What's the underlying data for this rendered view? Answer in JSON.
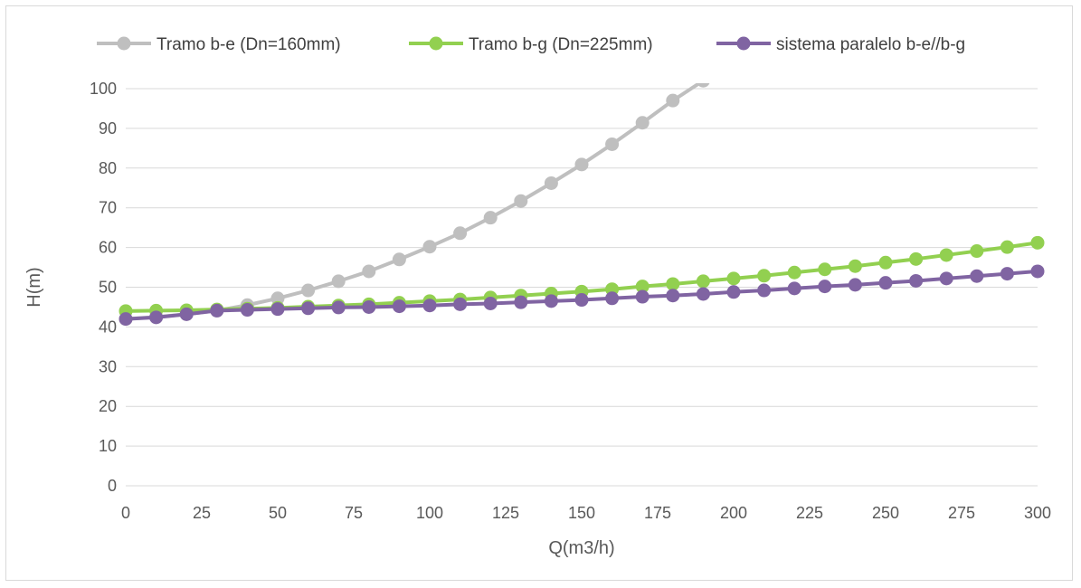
{
  "chart_data": {
    "type": "line",
    "title": "",
    "xlabel": "Q(m3/h)",
    "ylabel": "H(m)",
    "xlim": [
      0,
      300
    ],
    "ylim": [
      0,
      100
    ],
    "xticks": [
      0,
      25,
      50,
      75,
      100,
      125,
      150,
      175,
      200,
      225,
      250,
      275,
      300
    ],
    "yticks": [
      0,
      10,
      20,
      30,
      40,
      50,
      60,
      70,
      80,
      90,
      100
    ],
    "grid": "horizontal",
    "legend_position": "top",
    "series": [
      {
        "name": "Tramo b-e (Dn=160mm)",
        "color": "#bfbfbf",
        "x": [
          0,
          10,
          20,
          30,
          40,
          50,
          60,
          70,
          80,
          90,
          100,
          110,
          120,
          130,
          140,
          150,
          160,
          170,
          180,
          190
        ],
        "y": [
          42.0,
          42.5,
          43.2,
          44.1,
          45.5,
          47.2,
          49.2,
          51.5,
          54.0,
          57.0,
          60.2,
          63.6,
          67.5,
          71.7,
          76.2,
          80.9,
          86.0,
          91.4,
          97.0,
          102.0
        ]
      },
      {
        "name": "Tramo b-g (Dn=225mm)",
        "color": "#92d050",
        "x": [
          0,
          10,
          20,
          30,
          40,
          50,
          60,
          70,
          80,
          90,
          100,
          110,
          120,
          130,
          140,
          150,
          160,
          170,
          180,
          190,
          200,
          210,
          220,
          230,
          240,
          250,
          260,
          270,
          280,
          290,
          300
        ],
        "y": [
          44.0,
          44.1,
          44.2,
          44.4,
          44.6,
          44.8,
          45.1,
          45.4,
          45.7,
          46.1,
          46.5,
          46.9,
          47.4,
          47.9,
          48.4,
          48.9,
          49.5,
          50.2,
          50.8,
          51.5,
          52.2,
          52.9,
          53.7,
          54.5,
          55.3,
          56.2,
          57.1,
          58.1,
          59.1,
          60.1,
          61.2
        ]
      },
      {
        "name": "sistema paralelo b-e//b-g",
        "color": "#8064a2",
        "x": [
          0,
          10,
          20,
          30,
          40,
          50,
          60,
          70,
          80,
          90,
          100,
          110,
          120,
          130,
          140,
          150,
          160,
          170,
          180,
          190,
          200,
          210,
          220,
          230,
          240,
          250,
          260,
          270,
          280,
          290,
          300
        ],
        "y": [
          42.0,
          42.4,
          43.2,
          44.1,
          44.3,
          44.5,
          44.7,
          44.9,
          45.0,
          45.2,
          45.4,
          45.7,
          45.9,
          46.2,
          46.5,
          46.8,
          47.2,
          47.6,
          47.9,
          48.3,
          48.8,
          49.2,
          49.7,
          50.2,
          50.6,
          51.1,
          51.6,
          52.2,
          52.8,
          53.4,
          54.0
        ]
      }
    ]
  }
}
